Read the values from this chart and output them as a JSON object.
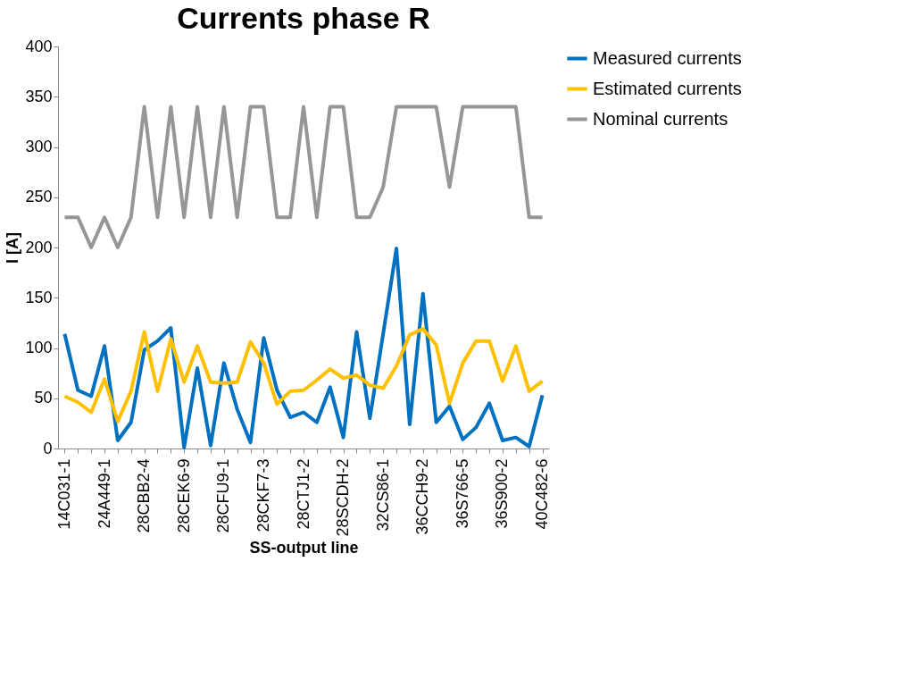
{
  "chart_data": {
    "type": "line",
    "title": "Currents phase R",
    "xlabel": "SS-output line",
    "ylabel": "I [A]",
    "categories": [
      "14C031-1",
      null,
      null,
      "24A449-1",
      null,
      null,
      "28CBB2-4",
      null,
      null,
      "28CEK6-9",
      null,
      null,
      "28CFU9-1",
      null,
      null,
      "28CKF7-3",
      null,
      null,
      "28CTJ1-2",
      null,
      null,
      "28SCDH-2",
      null,
      null,
      "32CS86-1",
      null,
      null,
      "36CCH9-2",
      null,
      null,
      "36S766-5",
      null,
      null,
      "36S900-2",
      null,
      null,
      "40C482-6"
    ],
    "series": [
      {
        "name": "Measured currents",
        "color": "#0070c0",
        "values": [
          114,
          58,
          52,
          102,
          8,
          26,
          98,
          107,
          120,
          1,
          80,
          3,
          85,
          39,
          6,
          110,
          58,
          31,
          36,
          26,
          61,
          11,
          116,
          30,
          114,
          199,
          24,
          154,
          26,
          42,
          9,
          21,
          45,
          8,
          11,
          2,
          53
        ]
      },
      {
        "name": "Estimated currents",
        "color": "#ffc000",
        "values": [
          52,
          46,
          36,
          69,
          27,
          57,
          116,
          57,
          109,
          66,
          102,
          66,
          65,
          66,
          106,
          85,
          44,
          57,
          58,
          68,
          79,
          70,
          73,
          63,
          60,
          82,
          113,
          119,
          103,
          45,
          85,
          107,
          107,
          67,
          102,
          57,
          67
        ]
      },
      {
        "name": "Nominal currents",
        "color": "#969696",
        "values": [
          230,
          230,
          200,
          230,
          200,
          230,
          340,
          230,
          340,
          230,
          340,
          230,
          340,
          230,
          340,
          340,
          230,
          230,
          340,
          230,
          340,
          340,
          230,
          230,
          260,
          340,
          340,
          340,
          340,
          260,
          340,
          340,
          340,
          340,
          340,
          230,
          230
        ]
      }
    ],
    "ylim": [
      0,
      400
    ],
    "yticks": [
      0,
      50,
      100,
      150,
      200,
      250,
      300,
      350,
      400
    ],
    "grid": false,
    "legend": "right",
    "marker": "none",
    "line_style": "solid"
  }
}
